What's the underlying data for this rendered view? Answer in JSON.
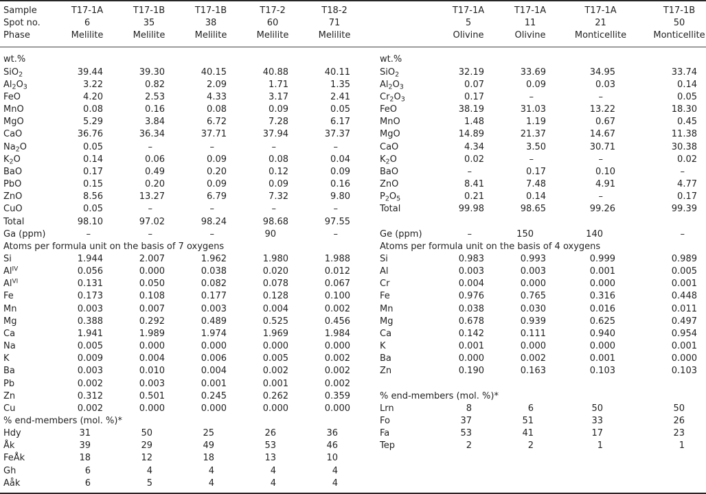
{
  "table": {
    "header": {
      "row_labels": [
        "Sample",
        "Spot no.",
        "Phase"
      ],
      "left_columns": [
        {
          "sample": "T17-1A",
          "spot": "6",
          "phase": "Melilite"
        },
        {
          "sample": "T17-1B",
          "spot": "35",
          "phase": "Melilite"
        },
        {
          "sample": "T17-1B",
          "spot": "38",
          "phase": "Melilite"
        },
        {
          "sample": "T17-2",
          "spot": "60",
          "phase": "Melilite"
        },
        {
          "sample": "T18-2",
          "spot": "71",
          "phase": "Melilite"
        }
      ],
      "right_columns": [
        {
          "sample": "T17-1A",
          "spot": "5",
          "phase": "Olivine"
        },
        {
          "sample": "T17-1A",
          "spot": "11",
          "phase": "Olivine"
        },
        {
          "sample": "T17-1A",
          "spot": "21",
          "phase": "Monticellite"
        },
        {
          "sample": "T17-1B",
          "spot": "50",
          "phase": "Monticellite"
        }
      ]
    },
    "section_headers": {
      "wt_percent": "wt.%",
      "left_atoms": "Atoms per formula unit on the basis of 7 oxygens",
      "right_atoms": "Atoms per formula unit on the basis of 4 oxygens",
      "end_members": "% end-members (mol. %)*"
    },
    "rows": [
      {
        "l": {
          "lb": "wt.%",
          "v": [
            "",
            "",
            "",
            "",
            ""
          ]
        },
        "r": {
          "lb": "wt.%",
          "v": [
            "",
            "",
            "",
            ""
          ]
        }
      },
      {
        "l": {
          "lb": "SiO_2",
          "v": [
            "39.44",
            "39.30",
            "40.15",
            "40.88",
            "40.11"
          ]
        },
        "r": {
          "lb": "SiO_2",
          "v": [
            "32.19",
            "33.69",
            "34.95",
            "33.74"
          ]
        }
      },
      {
        "l": {
          "lb": "Al_2O_3",
          "v": [
            "3.22",
            "0.82",
            "2.09",
            "1.71",
            "1.35"
          ]
        },
        "r": {
          "lb": "Al_2O_3",
          "v": [
            "0.07",
            "0.09",
            "0.03",
            "0.14"
          ]
        }
      },
      {
        "l": {
          "lb": "FeO",
          "v": [
            "4.20",
            "2.53",
            "4.33",
            "3.17",
            "2.41"
          ]
        },
        "r": {
          "lb": "Cr_2O_3",
          "v": [
            "0.17",
            "–",
            "–",
            "0.05"
          ]
        }
      },
      {
        "l": {
          "lb": "MnO",
          "v": [
            "0.08",
            "0.16",
            "0.08",
            "0.09",
            "0.05"
          ]
        },
        "r": {
          "lb": "FeO",
          "v": [
            "38.19",
            "31.03",
            "13.22",
            "18.30"
          ]
        }
      },
      {
        "l": {
          "lb": "MgO",
          "v": [
            "5.29",
            "3.84",
            "6.72",
            "7.28",
            "6.17"
          ]
        },
        "r": {
          "lb": "MnO",
          "v": [
            "1.48",
            "1.19",
            "0.67",
            "0.45"
          ]
        }
      },
      {
        "l": {
          "lb": "CaO",
          "v": [
            "36.76",
            "36.34",
            "37.71",
            "37.94",
            "37.37"
          ]
        },
        "r": {
          "lb": "MgO",
          "v": [
            "14.89",
            "21.37",
            "14.67",
            "11.38"
          ]
        }
      },
      {
        "l": {
          "lb": "Na_2O",
          "v": [
            "0.05",
            "–",
            "–",
            "–",
            "–"
          ]
        },
        "r": {
          "lb": "CaO",
          "v": [
            "4.34",
            "3.50",
            "30.71",
            "30.38"
          ]
        }
      },
      {
        "l": {
          "lb": "K_2O",
          "v": [
            "0.14",
            "0.06",
            "0.09",
            "0.08",
            "0.04"
          ]
        },
        "r": {
          "lb": "K_2O",
          "v": [
            "0.02",
            "–",
            "–",
            "0.02"
          ]
        }
      },
      {
        "l": {
          "lb": "BaO",
          "v": [
            "0.17",
            "0.49",
            "0.20",
            "0.12",
            "0.09"
          ]
        },
        "r": {
          "lb": "BaO",
          "v": [
            "–",
            "0.17",
            "0.10",
            "–"
          ]
        }
      },
      {
        "l": {
          "lb": "PbO",
          "v": [
            "0.15",
            "0.20",
            "0.09",
            "0.09",
            "0.16"
          ]
        },
        "r": {
          "lb": "ZnO",
          "v": [
            "8.41",
            "7.48",
            "4.91",
            "4.77"
          ]
        }
      },
      {
        "l": {
          "lb": "ZnO",
          "v": [
            "8.56",
            "13.27",
            "6.79",
            "7.32",
            "9.80"
          ]
        },
        "r": {
          "lb": "P_2O_5",
          "v": [
            "0.21",
            "0.14",
            "–",
            "0.17"
          ]
        }
      },
      {
        "l": {
          "lb": "CuO",
          "v": [
            "0.05",
            "–",
            "–",
            "–",
            "–"
          ]
        },
        "r": {
          "lb": "Total",
          "v": [
            "99.98",
            "98.65",
            "99.26",
            "99.39"
          ]
        }
      },
      {
        "l": {
          "lb": "Total",
          "v": [
            "98.10",
            "97.02",
            "98.24",
            "98.68",
            "97.55"
          ]
        },
        "r": {
          "lb": "",
          "v": [
            "",
            "",
            "",
            ""
          ]
        }
      },
      {
        "l": {
          "lb": "Ga (ppm)",
          "v": [
            "–",
            "–",
            "–",
            "90",
            "–"
          ]
        },
        "r": {
          "lb": "Ge (ppm)",
          "v": [
            "–",
            "150",
            "140",
            "–"
          ]
        }
      },
      {
        "l": {
          "sec": "Atoms per formula unit on the basis of 7 oxygens"
        },
        "r": {
          "sec": "Atoms per formula unit on the basis of 4 oxygens"
        }
      },
      {
        "l": {
          "lb": "Si",
          "v": [
            "1.944",
            "2.007",
            "1.962",
            "1.980",
            "1.988"
          ]
        },
        "r": {
          "lb": "Si",
          "v": [
            "0.983",
            "0.993",
            "0.999",
            "0.989"
          ]
        }
      },
      {
        "l": {
          "lb": "Al^IV",
          "v": [
            "0.056",
            "0.000",
            "0.038",
            "0.020",
            "0.012"
          ]
        },
        "r": {
          "lb": "Al",
          "v": [
            "0.003",
            "0.003",
            "0.001",
            "0.005"
          ]
        }
      },
      {
        "l": {
          "lb": "Al^VI",
          "v": [
            "0.131",
            "0.050",
            "0.082",
            "0.078",
            "0.067"
          ]
        },
        "r": {
          "lb": "Cr",
          "v": [
            "0.004",
            "0.000",
            "0.000",
            "0.001"
          ]
        }
      },
      {
        "l": {
          "lb": "Fe",
          "v": [
            "0.173",
            "0.108",
            "0.177",
            "0.128",
            "0.100"
          ]
        },
        "r": {
          "lb": "Fe",
          "v": [
            "0.976",
            "0.765",
            "0.316",
            "0.448"
          ]
        }
      },
      {
        "l": {
          "lb": "Mn",
          "v": [
            "0.003",
            "0.007",
            "0.003",
            "0.004",
            "0.002"
          ]
        },
        "r": {
          "lb": "Mn",
          "v": [
            "0.038",
            "0.030",
            "0.016",
            "0.011"
          ]
        }
      },
      {
        "l": {
          "lb": "Mg",
          "v": [
            "0.388",
            "0.292",
            "0.489",
            "0.525",
            "0.456"
          ]
        },
        "r": {
          "lb": "Mg",
          "v": [
            "0.678",
            "0.939",
            "0.625",
            "0.497"
          ]
        }
      },
      {
        "l": {
          "lb": "Ca",
          "v": [
            "1.941",
            "1.989",
            "1.974",
            "1.969",
            "1.984"
          ]
        },
        "r": {
          "lb": "Ca",
          "v": [
            "0.142",
            "0.111",
            "0.940",
            "0.954"
          ]
        }
      },
      {
        "l": {
          "lb": "Na",
          "v": [
            "0.005",
            "0.000",
            "0.000",
            "0.000",
            "0.000"
          ]
        },
        "r": {
          "lb": "K",
          "v": [
            "0.001",
            "0.000",
            "0.000",
            "0.001"
          ]
        }
      },
      {
        "l": {
          "lb": "K",
          "v": [
            "0.009",
            "0.004",
            "0.006",
            "0.005",
            "0.002"
          ]
        },
        "r": {
          "lb": "Ba",
          "v": [
            "0.000",
            "0.002",
            "0.001",
            "0.000"
          ]
        }
      },
      {
        "l": {
          "lb": "Ba",
          "v": [
            "0.003",
            "0.010",
            "0.004",
            "0.002",
            "0.002"
          ]
        },
        "r": {
          "lb": "Zn",
          "v": [
            "0.190",
            "0.163",
            "0.103",
            "0.103"
          ]
        }
      },
      {
        "l": {
          "lb": "Pb",
          "v": [
            "0.002",
            "0.003",
            "0.001",
            "0.001",
            "0.002"
          ]
        },
        "r": {
          "lb": "",
          "v": [
            "",
            "",
            "",
            ""
          ]
        }
      },
      {
        "l": {
          "lb": "Zn",
          "v": [
            "0.312",
            "0.501",
            "0.245",
            "0.262",
            "0.359"
          ]
        },
        "r": {
          "sec": "% end-members (mol. %)*"
        }
      },
      {
        "l": {
          "lb": "Cu",
          "v": [
            "0.002",
            "0.000",
            "0.000",
            "0.000",
            "0.000"
          ]
        },
        "r": {
          "lb": "Lrn",
          "v": [
            "8",
            "6",
            "50",
            "50"
          ]
        }
      },
      {
        "l": {
          "sec": "% end-members (mol. %)*"
        },
        "r": {
          "lb": "Fo",
          "v": [
            "37",
            "51",
            "33",
            "26"
          ]
        }
      },
      {
        "l": {
          "lb": "Hdy",
          "v": [
            "31",
            "50",
            "25",
            "26",
            "36"
          ]
        },
        "r": {
          "lb": "Fa",
          "v": [
            "53",
            "41",
            "17",
            "23"
          ]
        }
      },
      {
        "l": {
          "lb": "Åk",
          "v": [
            "39",
            "29",
            "49",
            "53",
            "46"
          ]
        },
        "r": {
          "lb": "Tep",
          "v": [
            "2",
            "2",
            "1",
            "1"
          ]
        }
      },
      {
        "l": {
          "lb": "FeÅk",
          "v": [
            "18",
            "12",
            "18",
            "13",
            "10"
          ]
        },
        "r": {
          "lb": "",
          "v": [
            "",
            "",
            "",
            ""
          ]
        }
      },
      {
        "l": {
          "lb": "Gh",
          "v": [
            "6",
            "4",
            "4",
            "4",
            "4"
          ]
        },
        "r": {
          "lb": "",
          "v": [
            "",
            "",
            "",
            ""
          ]
        }
      },
      {
        "l": {
          "lb": "Aåk",
          "v": [
            "6",
            "5",
            "4",
            "4",
            "4"
          ]
        },
        "r": {
          "lb": "",
          "v": [
            "",
            "",
            "",
            ""
          ]
        }
      }
    ]
  }
}
